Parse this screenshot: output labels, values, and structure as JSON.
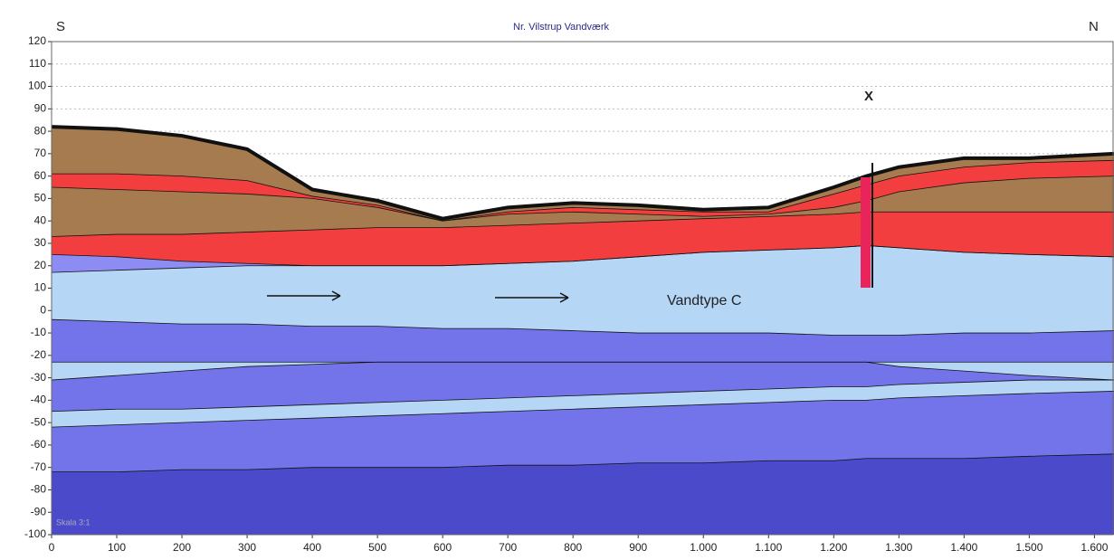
{
  "chart_data": {
    "type": "section",
    "title": "Nr. Vilstrup Vandværk",
    "left_label": "S",
    "right_label": "N",
    "annotations": [
      "Vandtype C",
      "X",
      "Skala 3:1"
    ],
    "xlim": [
      0,
      1630
    ],
    "ylim": [
      -100,
      120
    ],
    "xticks": [
      0,
      100,
      200,
      300,
      400,
      500,
      600,
      700,
      800,
      900,
      {
        "value": 1000,
        "label": "1.000"
      },
      {
        "value": 1100,
        "label": "1.100"
      },
      {
        "value": 1200,
        "label": "1.200"
      },
      {
        "value": 1300,
        "label": "1.300"
      },
      {
        "value": 1400,
        "label": "1.400"
      },
      {
        "value": 1500,
        "label": "1.500"
      },
      {
        "value": 1600,
        "label": "1.600"
      }
    ],
    "yticks": [
      -100,
      -90,
      -80,
      -70,
      -60,
      -50,
      -40,
      -30,
      -20,
      -10,
      0,
      10,
      20,
      30,
      40,
      50,
      60,
      70,
      80,
      90,
      100,
      110,
      120
    ],
    "grid": true,
    "x": [
      0,
      100,
      200,
      300,
      400,
      500,
      600,
      700,
      800,
      900,
      1000,
      1100,
      1200,
      1250,
      1300,
      1400,
      1500,
      1630
    ],
    "series": [
      {
        "color": "#a57b4f",
        "values": [
          82,
          81,
          78,
          72,
          54,
          49,
          41,
          46,
          48,
          47,
          45,
          46,
          55,
          60,
          64,
          68,
          68,
          70
        ]
      },
      {
        "color": "#f23e3e",
        "values": [
          61,
          61,
          60,
          58,
          51,
          47,
          40,
          44,
          46,
          45,
          44,
          44,
          52,
          56,
          60,
          64,
          66,
          67
        ]
      },
      {
        "color": "#a57b4f",
        "values": [
          55,
          54,
          53,
          52,
          50,
          46,
          40,
          43,
          44,
          43,
          42,
          43,
          46,
          49,
          53,
          57,
          59,
          60
        ]
      },
      {
        "color": "#f23e3e",
        "values": [
          33,
          34,
          34,
          35,
          36,
          37,
          37,
          38,
          39,
          40,
          41,
          42,
          43,
          44,
          44,
          44,
          44,
          44
        ]
      },
      {
        "color": "#8c8cf2",
        "values": [
          25,
          24,
          22,
          21,
          20,
          20,
          20,
          21,
          22,
          24,
          26,
          27,
          28,
          29,
          28,
          26,
          25,
          24
        ]
      },
      {
        "color": "#b6d6f6",
        "values": [
          17,
          18,
          19,
          20,
          20,
          20,
          20,
          21,
          22,
          24,
          26,
          27,
          28,
          29,
          28,
          26,
          25,
          24
        ]
      },
      {
        "color": "#7474ea",
        "values": [
          -4,
          -5,
          -6,
          -6,
          -7,
          -7,
          -8,
          -8,
          -9,
          -10,
          -10,
          -10,
          -11,
          -11,
          -11,
          -10,
          -10,
          -9
        ]
      },
      {
        "color": "#b6d6f6",
        "values": [
          -23,
          -23,
          -23,
          -23,
          -23,
          -23,
          -23,
          -23,
          -23,
          -23,
          -23,
          -23,
          -23,
          -23,
          -23,
          -23,
          -23,
          -23
        ]
      },
      {
        "color": "#7474ea",
        "values": [
          -31,
          -29,
          -27,
          -25,
          -24,
          -23,
          -23,
          -23,
          -23,
          -23,
          -23,
          -23,
          -23,
          -23,
          -25,
          -27,
          -29,
          -31
        ]
      },
      {
        "color": "#b6d6f6",
        "values": [
          -45,
          -44,
          -44,
          -43,
          -42,
          -41,
          -40,
          -39,
          -38,
          -37,
          -36,
          -35,
          -34,
          -34,
          -33,
          -32,
          -31,
          -31
        ]
      },
      {
        "color": "#7474ea",
        "values": [
          -52,
          -51,
          -50,
          -49,
          -48,
          -47,
          -46,
          -45,
          -44,
          -43,
          -42,
          -41,
          -40,
          -40,
          -39,
          -38,
          -37,
          -36
        ]
      },
      {
        "color": "#4a4aca",
        "values": [
          -72,
          -72,
          -71,
          -71,
          -70,
          -70,
          -70,
          -69,
          -69,
          -68,
          -68,
          -67,
          -67,
          -66,
          -66,
          -66,
          -65,
          -64
        ]
      }
    ]
  }
}
